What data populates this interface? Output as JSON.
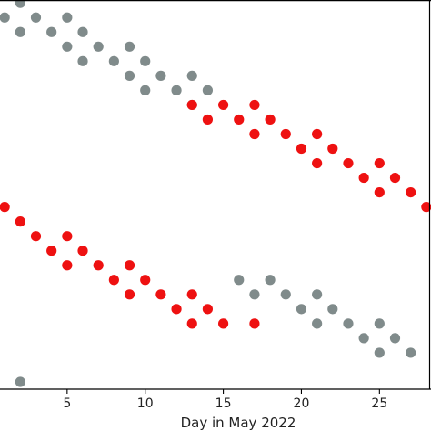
{
  "chart_data": {
    "type": "scatter",
    "xlabel": "Day in May 2022",
    "xlim": [
      0.7,
      28.3
    ],
    "ylim": [
      -25.5,
      1.2
    ],
    "xticks": [
      5,
      10,
      15,
      20,
      25
    ],
    "grid": false,
    "series": [
      {
        "color": "#808b8b",
        "points": [
          [
            1,
            0
          ],
          [
            2,
            1
          ],
          [
            2,
            -1
          ],
          [
            3,
            0
          ],
          [
            4,
            -1
          ],
          [
            5,
            0
          ],
          [
            5,
            -2
          ],
          [
            6,
            -1
          ],
          [
            6,
            -3
          ],
          [
            7,
            -2
          ],
          [
            8,
            -3
          ],
          [
            9,
            -2
          ],
          [
            9,
            -4
          ],
          [
            10,
            -3
          ],
          [
            10,
            -5
          ],
          [
            11,
            -4
          ],
          [
            12,
            -5
          ],
          [
            13,
            -4
          ],
          [
            13,
            -6
          ],
          [
            14,
            -5
          ],
          [
            16,
            -18
          ],
          [
            17,
            -19
          ],
          [
            18,
            -18
          ],
          [
            19,
            -19
          ],
          [
            20,
            -20
          ],
          [
            21,
            -19
          ],
          [
            21,
            -21
          ],
          [
            22,
            -20
          ],
          [
            23,
            -21
          ],
          [
            24,
            -22
          ],
          [
            25,
            -21
          ],
          [
            25,
            -23
          ],
          [
            26,
            -22
          ],
          [
            27,
            -23
          ],
          [
            2,
            -25
          ]
        ]
      },
      {
        "color": "#ee1111",
        "points": [
          [
            13,
            -6
          ],
          [
            14,
            -7
          ],
          [
            15,
            -6
          ],
          [
            16,
            -7
          ],
          [
            17,
            -6
          ],
          [
            17,
            -8
          ],
          [
            18,
            -7
          ],
          [
            19,
            -8
          ],
          [
            20,
            -9
          ],
          [
            21,
            -8
          ],
          [
            21,
            -10
          ],
          [
            22,
            -9
          ],
          [
            23,
            -10
          ],
          [
            24,
            -11
          ],
          [
            25,
            -10
          ],
          [
            25,
            -12
          ],
          [
            26,
            -11
          ],
          [
            27,
            -12
          ],
          [
            28,
            -13
          ],
          [
            1,
            -13
          ],
          [
            2,
            -14
          ],
          [
            3,
            -15
          ],
          [
            4,
            -16
          ],
          [
            5,
            -15
          ],
          [
            5,
            -17
          ],
          [
            6,
            -16
          ],
          [
            7,
            -17
          ],
          [
            8,
            -18
          ],
          [
            9,
            -17
          ],
          [
            9,
            -19
          ],
          [
            10,
            -18
          ],
          [
            11,
            -19
          ],
          [
            12,
            -20
          ],
          [
            13,
            -19
          ],
          [
            13,
            -21
          ],
          [
            14,
            -20
          ],
          [
            15,
            -21
          ],
          [
            17,
            -21
          ]
        ]
      }
    ]
  }
}
